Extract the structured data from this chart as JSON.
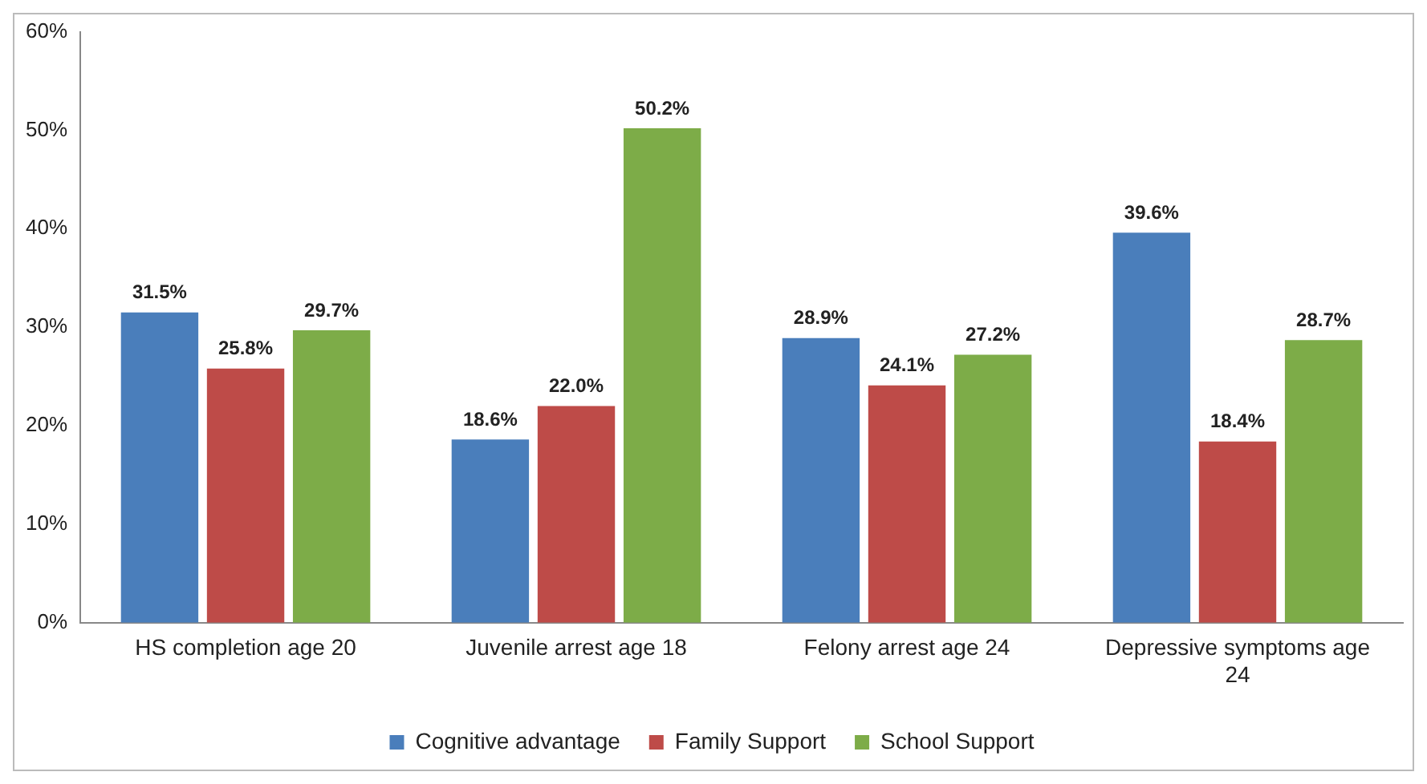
{
  "chart_data": {
    "type": "bar",
    "categories": [
      "HS completion age 20",
      "Juvenile arrest age 18",
      "Felony arrest age 24",
      "Depressive symptoms age 24"
    ],
    "series": [
      {
        "name": "Cognitive advantage",
        "color": "#4a7ebb",
        "values": [
          31.5,
          18.6,
          28.9,
          39.6
        ],
        "value_labels": [
          "31.5%",
          "18.6%",
          "28.9%",
          "39.6%"
        ]
      },
      {
        "name": "Family Support",
        "color": "#be4b48",
        "values": [
          25.8,
          22.0,
          24.1,
          18.4
        ],
        "value_labels": [
          "25.8%",
          "22.0%",
          "24.1%",
          "18.4%"
        ]
      },
      {
        "name": "School Support",
        "color": "#7dac48",
        "values": [
          29.7,
          50.2,
          27.2,
          28.7
        ],
        "value_labels": [
          "29.7%",
          "50.2%",
          "27.2%",
          "28.7%"
        ]
      }
    ],
    "ylim": [
      0,
      60
    ],
    "yticks": [
      {
        "value": 0,
        "label": "0%"
      },
      {
        "value": 10,
        "label": "10%"
      },
      {
        "value": 20,
        "label": "20%"
      },
      {
        "value": 30,
        "label": "30%"
      },
      {
        "value": 40,
        "label": "40%"
      },
      {
        "value": 50,
        "label": "50%"
      },
      {
        "value": 60,
        "label": "60%"
      }
    ],
    "grid": false,
    "legend": "bottom"
  }
}
